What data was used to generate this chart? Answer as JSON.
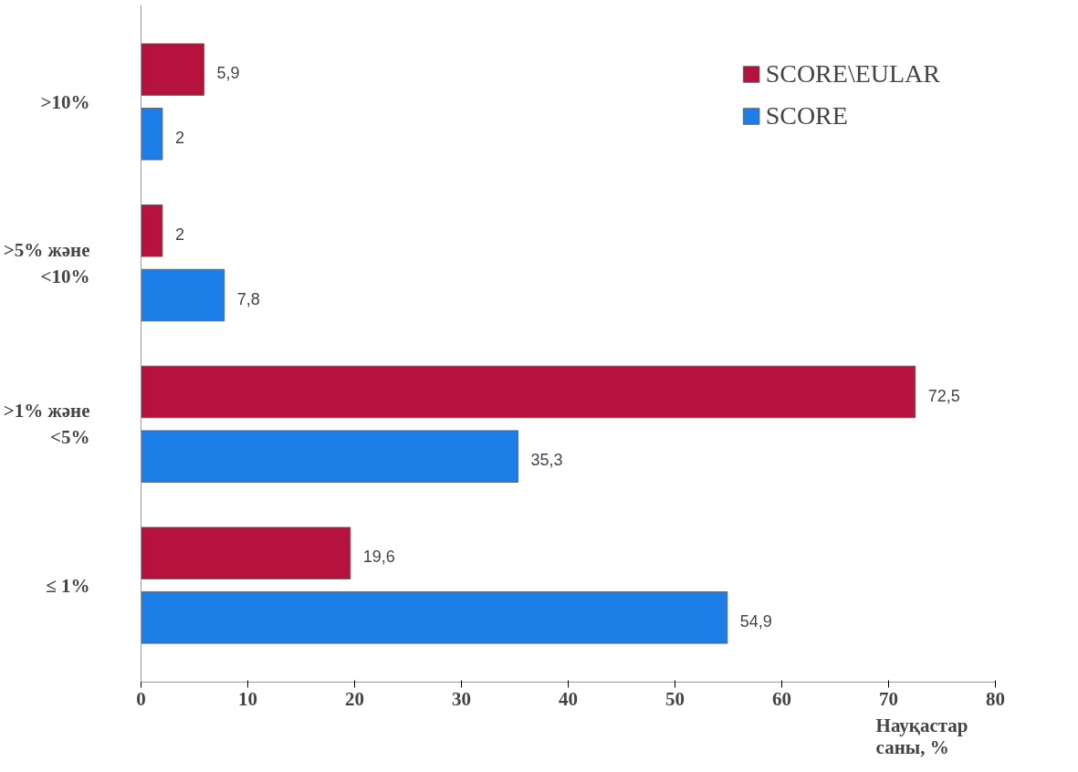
{
  "chart_data": {
    "type": "bar",
    "orientation": "horizontal",
    "xlabel": "Науқастар\nсаны, %",
    "categories": [
      ">10%",
      ">5% және\n<10%",
      ">1% және\n<5%",
      "≤ 1%"
    ],
    "series": [
      {
        "name": "SCORE\\EULAR",
        "color": "#b5123e",
        "values": [
          5.9,
          2,
          72.5,
          19.6
        ],
        "value_labels": [
          "5,9",
          "2",
          "72,5",
          "19,6"
        ]
      },
      {
        "name": "SCORE",
        "color": "#1e7ee8",
        "values": [
          2,
          7.8,
          35.3,
          54.9
        ],
        "value_labels": [
          "2",
          "7,8",
          "35,3",
          "54,9"
        ]
      }
    ],
    "xlim": [
      0,
      80
    ],
    "xticks": [
      0,
      10,
      20,
      30,
      40,
      50,
      60,
      70,
      80
    ],
    "grid": false,
    "legend": "top right"
  }
}
